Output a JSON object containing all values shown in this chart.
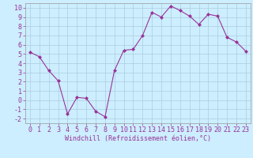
{
  "x": [
    0,
    1,
    2,
    3,
    4,
    5,
    6,
    7,
    8,
    9,
    10,
    11,
    12,
    13,
    14,
    15,
    16,
    17,
    18,
    19,
    20,
    21,
    22,
    23
  ],
  "y": [
    5.2,
    4.7,
    3.2,
    2.1,
    -1.5,
    0.3,
    0.2,
    -1.2,
    -1.8,
    3.2,
    5.4,
    5.5,
    7.0,
    9.5,
    9.0,
    10.2,
    9.7,
    9.1,
    8.2,
    9.3,
    9.1,
    6.8,
    6.3,
    5.3
  ],
  "line_color": "#993399",
  "marker": "D",
  "markersize": 2.0,
  "linewidth": 0.8,
  "bg_color": "#cceeff",
  "grid_color": "#aaccdd",
  "xlabel": "Windchill (Refroidissement éolien,°C)",
  "xlim": [
    -0.5,
    23.5
  ],
  "ylim": [
    -2.5,
    10.5
  ],
  "yticks": [
    -2,
    -1,
    0,
    1,
    2,
    3,
    4,
    5,
    6,
    7,
    8,
    9,
    10
  ],
  "xticks": [
    0,
    1,
    2,
    3,
    4,
    5,
    6,
    7,
    8,
    9,
    10,
    11,
    12,
    13,
    14,
    15,
    16,
    17,
    18,
    19,
    20,
    21,
    22,
    23
  ],
  "xlabel_fontsize": 6.0,
  "tick_fontsize": 6.0,
  "label_color": "#993399"
}
